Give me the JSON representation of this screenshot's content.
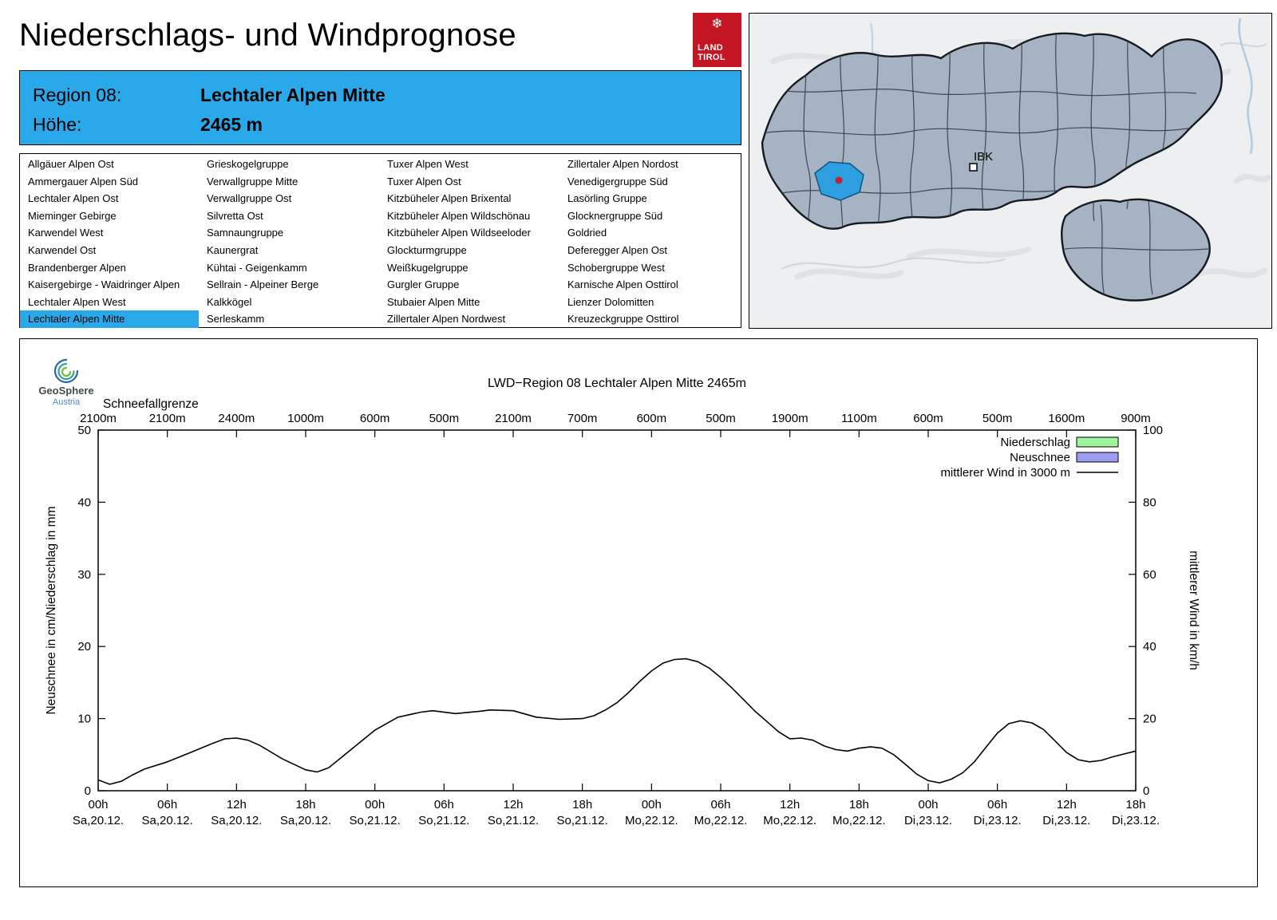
{
  "page": {
    "title": "Niederschlags- und Windprognose"
  },
  "land_logo": {
    "line1": "LAND",
    "line2": "TIROL",
    "snowflake": "❄",
    "color": "#c31622"
  },
  "map": {
    "city_label": "IBK",
    "highlight_color": "#2d9fe0",
    "region_fill": "#a5b3c3"
  },
  "region_header": {
    "region_label": "Region 08:",
    "region_value": "Lechtaler Alpen Mitte",
    "altitude_label": "Höhe:",
    "altitude_value": "2465 m",
    "bg_color": "#29a9ea"
  },
  "region_list": {
    "selected": "Lechtaler Alpen Mitte",
    "columns": [
      [
        "Allgäuer Alpen Ost",
        "Ammergauer Alpen Süd",
        "Lechtaler Alpen Ost",
        "Mieminger Gebirge",
        "Karwendel West",
        "Karwendel Ost",
        "Brandenberger Alpen",
        "Kaisergebirge - Waidringer Alpen",
        "Lechtaler Alpen West",
        "Lechtaler Alpen Mitte"
      ],
      [
        "Grieskogelgruppe",
        "Verwallgruppe Mitte",
        "Verwallgruppe Ost",
        "Silvretta Ost",
        "Samnaungruppe",
        "Kaunergrat",
        "Kühtai - Geigenkamm",
        "Sellrain - Alpeiner Berge",
        "Kalkkögel",
        "Serleskamm"
      ],
      [
        "Tuxer Alpen West",
        "Tuxer Alpen Ost",
        "Kitzbüheler Alpen Brixental",
        "Kitzbüheler Alpen Wildschönau",
        "Kitzbüheler Alpen Wildseeloder",
        "Glockturmgruppe",
        "Weißkugelgruppe",
        "Gurgler Gruppe",
        "Stubaier Alpen Mitte",
        "Zillertaler Alpen Nordwest"
      ],
      [
        "Zillertaler Alpen Nordost",
        "Venedigergruppe Süd",
        "Lasörling Gruppe",
        "Glocknergruppe Süd",
        "Goldried",
        "Deferegger Alpen Ost",
        "Schobergruppe West",
        "Karnische Alpen Osttirol",
        "Lienzer Dolomitten",
        "Kreuzeckgruppe Osttirol"
      ]
    ]
  },
  "chart": {
    "brand_name": "GeoSphere",
    "brand_sub": "Austria",
    "snowline_label": "Schneefallgrenze"
  },
  "chart_data": {
    "type": "line",
    "title": "LWD−Region 08 Lechtaler Alpen Mitte 2465m",
    "ylabel_left": "Neuschnee in cm/Niederschlag in mm",
    "ylabel_right": "mittlerer Wind in km/h",
    "ylim_left": [
      0,
      50
    ],
    "yticks_left": [
      0,
      10,
      20,
      30,
      40,
      50
    ],
    "ylim_right": [
      0,
      100
    ],
    "yticks_right": [
      0,
      20,
      40,
      60,
      80,
      100
    ],
    "grid": false,
    "legend_position": "top-right inside",
    "x_hours_range": [
      0,
      90
    ],
    "xticks": [
      {
        "hour": 0,
        "time": "00h",
        "date": "Sa,20.12."
      },
      {
        "hour": 6,
        "time": "06h",
        "date": "Sa,20.12."
      },
      {
        "hour": 12,
        "time": "12h",
        "date": "Sa,20.12."
      },
      {
        "hour": 18,
        "time": "18h",
        "date": "Sa,20.12."
      },
      {
        "hour": 24,
        "time": "00h",
        "date": "So,21.12."
      },
      {
        "hour": 30,
        "time": "06h",
        "date": "So,21.12."
      },
      {
        "hour": 36,
        "time": "12h",
        "date": "So,21.12."
      },
      {
        "hour": 42,
        "time": "18h",
        "date": "So,21.12."
      },
      {
        "hour": 48,
        "time": "00h",
        "date": "Mo,22.12."
      },
      {
        "hour": 54,
        "time": "06h",
        "date": "Mo,22.12."
      },
      {
        "hour": 60,
        "time": "12h",
        "date": "Mo,22.12."
      },
      {
        "hour": 66,
        "time": "18h",
        "date": "Mo,22.12."
      },
      {
        "hour": 72,
        "time": "00h",
        "date": "Di,23.12."
      },
      {
        "hour": 78,
        "time": "06h",
        "date": "Di,23.12."
      },
      {
        "hour": 84,
        "time": "12h",
        "date": "Di,23.12."
      },
      {
        "hour": 90,
        "time": "18h",
        "date": "Di,23.12."
      }
    ],
    "snowline_m": [
      2100,
      2100,
      2400,
      1000,
      600,
      500,
      2100,
      700,
      600,
      500,
      1900,
      1100,
      600,
      500,
      1600,
      900
    ],
    "legend": [
      {
        "label": "Niederschlag",
        "swatch": "box",
        "color": "#9df59d"
      },
      {
        "label": "Neuschnee",
        "swatch": "box",
        "color": "#9b9bf0"
      },
      {
        "label": "mittlerer Wind in 3000 m",
        "swatch": "line",
        "color": "#000000"
      }
    ],
    "series": [
      {
        "name": "Niederschlag",
        "type": "bars",
        "unit": "mm",
        "axis": "left",
        "values_per_6h": [
          0,
          0,
          0,
          0,
          0,
          0,
          0,
          0,
          0,
          0,
          0,
          0,
          0,
          0,
          0,
          0
        ]
      },
      {
        "name": "Neuschnee",
        "type": "bars",
        "unit": "cm",
        "axis": "left",
        "values_per_6h": [
          0,
          0,
          0,
          0,
          0,
          0,
          0,
          0,
          0,
          0,
          0,
          0,
          0,
          0,
          0,
          0
        ]
      },
      {
        "name": "mittlerer Wind in 3000 m",
        "type": "line",
        "unit": "km/h",
        "axis": "right",
        "hours": [
          0,
          1,
          2,
          3,
          4,
          6,
          8,
          10,
          11,
          12,
          13,
          14,
          16,
          18,
          19,
          20,
          22,
          24,
          26,
          28,
          29,
          31,
          33,
          34,
          36,
          38,
          40,
          42,
          43,
          44,
          45,
          46,
          47,
          48,
          49,
          50,
          51,
          52,
          53,
          54,
          55,
          56,
          57,
          58,
          59,
          60,
          61,
          62,
          63,
          64,
          65,
          66,
          67,
          68,
          69,
          70,
          71,
          72,
          73,
          74,
          75,
          76,
          77,
          78,
          79,
          80,
          81,
          82,
          83,
          84,
          85,
          86,
          87,
          88,
          89,
          90
        ],
        "values_kmh": [
          3.0,
          1.8,
          2.6,
          4.4,
          6.0,
          8.0,
          10.6,
          13.2,
          14.4,
          14.6,
          14.0,
          12.6,
          8.8,
          5.8,
          5.2,
          6.4,
          11.6,
          16.8,
          20.4,
          21.8,
          22.2,
          21.4,
          22.0,
          22.4,
          22.2,
          20.4,
          19.8,
          20.0,
          20.8,
          22.4,
          24.4,
          27.2,
          30.4,
          33.2,
          35.4,
          36.4,
          36.6,
          35.8,
          34.0,
          31.4,
          28.4,
          25.2,
          22.0,
          19.2,
          16.4,
          14.4,
          14.6,
          14.0,
          12.4,
          11.4,
          11.0,
          11.8,
          12.2,
          11.8,
          10.0,
          7.4,
          4.6,
          2.8,
          2.2,
          3.2,
          5.0,
          8.0,
          12.0,
          16.0,
          18.6,
          19.4,
          18.8,
          17.0,
          13.8,
          10.6,
          8.6,
          8.0,
          8.4,
          9.4,
          10.2,
          11.0
        ]
      }
    ]
  }
}
